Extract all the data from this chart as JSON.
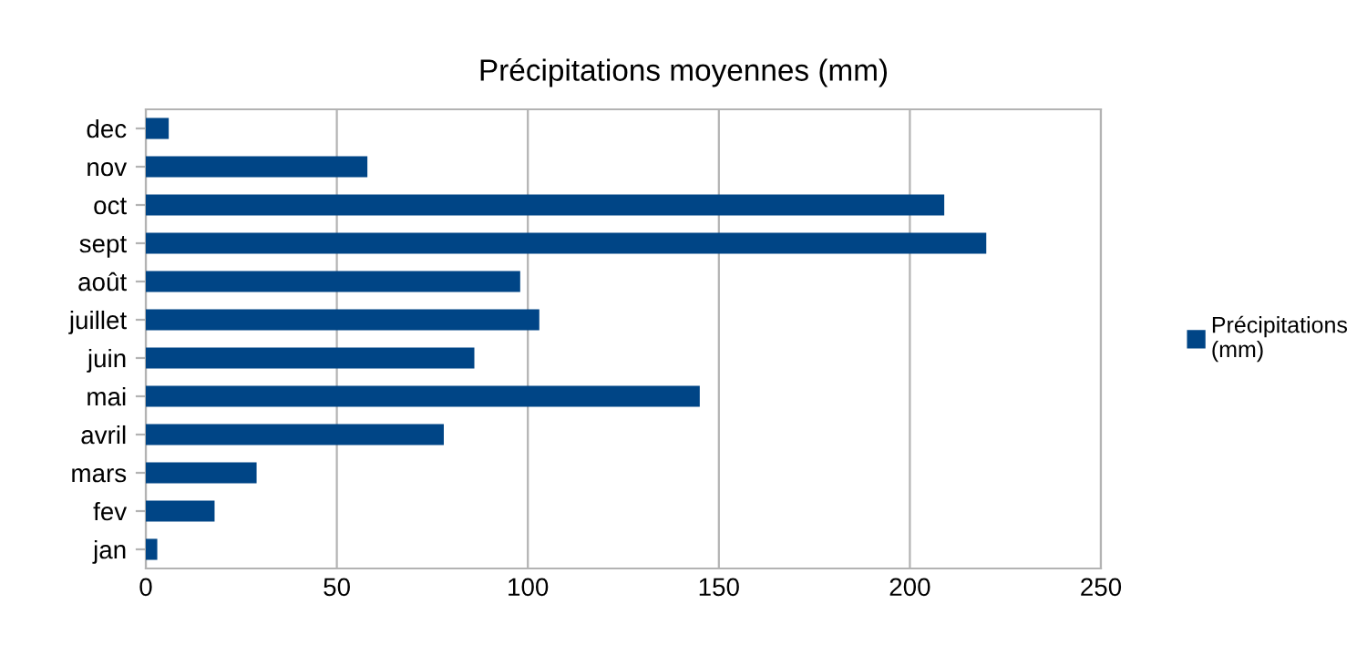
{
  "chart_data": {
    "type": "bar",
    "orientation": "horizontal",
    "title": "Précipitations moyennes (mm)",
    "categories": [
      "dec",
      "nov",
      "oct",
      "sept",
      "août",
      "juillet",
      "juin",
      "mai",
      "avril",
      "mars",
      "fev",
      "jan"
    ],
    "series": [
      {
        "name": "Précipitations (mm)",
        "color": "#004586",
        "values": [
          6,
          58,
          209,
          220,
          98,
          103,
          86,
          145,
          78,
          29,
          18,
          3
        ]
      }
    ],
    "xlim": [
      0,
      250
    ],
    "xticks": [
      0,
      50,
      100,
      150,
      200,
      250
    ],
    "grid": "x",
    "legend": "right"
  }
}
